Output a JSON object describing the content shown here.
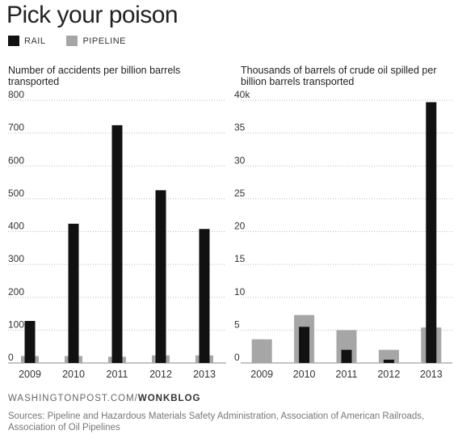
{
  "title": "Pick your poison",
  "legend": [
    {
      "name": "RAIL",
      "color": "#111111"
    },
    {
      "name": "PIPELINE",
      "color": "#a6a6a6"
    }
  ],
  "chart_data": [
    {
      "type": "bar",
      "title": "Number of accidents per billion barrels transported",
      "categories": [
        "2009",
        "2010",
        "2011",
        "2012",
        "2013"
      ],
      "series": [
        {
          "name": "RAIL",
          "values": [
            128,
            424,
            724,
            526,
            408
          ]
        },
        {
          "name": "PIPELINE",
          "values": [
            21,
            21,
            19,
            23,
            23
          ]
        }
      ],
      "ylim": [
        0,
        800
      ],
      "yticks": [
        "0",
        "100",
        "200",
        "300",
        "400",
        "500",
        "600",
        "700",
        "800"
      ],
      "grid": true
    },
    {
      "type": "bar",
      "title": "Thousands of barrels of crude oil spilled per billion barrels transported",
      "categories": [
        "2009",
        "2010",
        "2011",
        "2012",
        "2013"
      ],
      "series": [
        {
          "name": "RAIL",
          "values": [
            0,
            5.5,
            2.0,
            0.5,
            39.7
          ]
        },
        {
          "name": "PIPELINE",
          "values": [
            3.6,
            7.3,
            5.0,
            2.0,
            5.4
          ]
        }
      ],
      "ylim": [
        0,
        40
      ],
      "yticks": [
        "0",
        "5",
        "10",
        "15",
        "20",
        "25",
        "30",
        "35",
        "40k"
      ],
      "grid": true
    }
  ],
  "footer": {
    "site": "WASHINGTONPOST.COM/",
    "blog": "WONKBLOG",
    "sources": "Sources: Pipeline and Hazardous Materials Safety Administration, Association of American Railroads, Association of Oil Pipelines"
  }
}
